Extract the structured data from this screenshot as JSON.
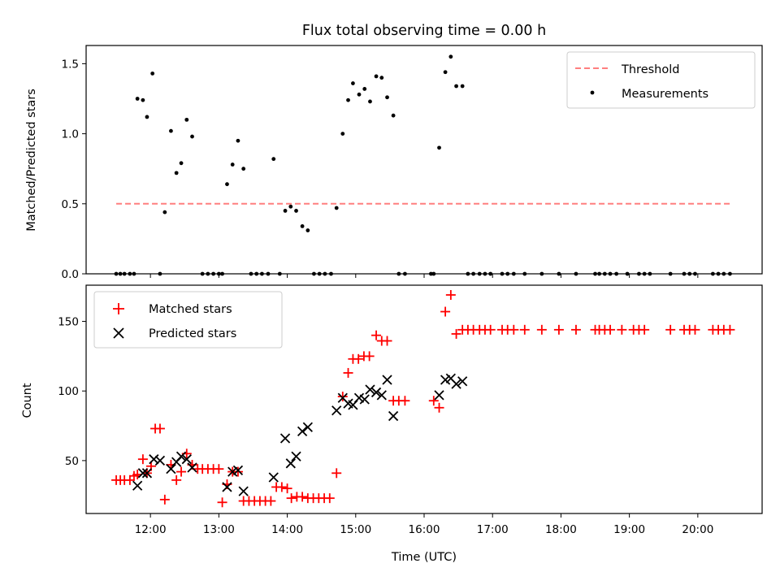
{
  "chart_data": [
    {
      "type": "scatter",
      "title": "Flux total observing time = 0.00 h",
      "xlabel": "",
      "ylabel": "Matched/Predicted stars",
      "ylim": [
        0,
        1.63
      ],
      "xlim": [
        11.06,
        20.94
      ],
      "yticks": [
        0.0,
        0.5,
        1.0,
        1.5
      ],
      "ytick_labels": [
        "0.0",
        "0.5",
        "1.0",
        "1.5"
      ],
      "legend_position": "top-right",
      "legend": [
        "Threshold",
        "Measurements"
      ],
      "threshold": {
        "name": "Threshold",
        "y": 0.5,
        "x_range": [
          11.5,
          20.5
        ],
        "color": "#ff7f7f"
      },
      "series": [
        {
          "name": "Measurements",
          "color": "#000000",
          "points": [
            [
              11.81,
              1.25
            ],
            [
              11.89,
              1.24
            ],
            [
              11.95,
              1.12
            ],
            [
              12.03,
              1.43
            ],
            [
              12.3,
              1.02
            ],
            [
              12.38,
              0.72
            ],
            [
              12.45,
              0.79
            ],
            [
              12.53,
              1.1
            ],
            [
              12.61,
              0.98
            ],
            [
              12.21,
              0.44
            ],
            [
              13.12,
              0.64
            ],
            [
              13.2,
              0.78
            ],
            [
              13.28,
              0.95
            ],
            [
              13.36,
              0.75
            ],
            [
              13.8,
              0.82
            ],
            [
              13.97,
              0.45
            ],
            [
              14.05,
              0.48
            ],
            [
              14.13,
              0.45
            ],
            [
              14.22,
              0.34
            ],
            [
              14.3,
              0.31
            ],
            [
              14.72,
              0.47
            ],
            [
              14.81,
              1.0
            ],
            [
              14.89,
              1.24
            ],
            [
              14.96,
              1.36
            ],
            [
              15.05,
              1.28
            ],
            [
              15.13,
              1.32
            ],
            [
              15.21,
              1.23
            ],
            [
              15.3,
              1.41
            ],
            [
              15.38,
              1.4
            ],
            [
              15.46,
              1.26
            ],
            [
              15.55,
              1.13
            ],
            [
              16.22,
              0.9
            ],
            [
              16.31,
              1.44
            ],
            [
              16.39,
              1.55
            ],
            [
              16.47,
              1.34
            ],
            [
              16.56,
              1.34
            ],
            [
              11.5,
              0
            ],
            [
              11.56,
              0
            ],
            [
              11.62,
              0
            ],
            [
              11.7,
              0
            ],
            [
              11.76,
              0
            ],
            [
              12.14,
              0
            ],
            [
              12.76,
              0
            ],
            [
              12.84,
              0
            ],
            [
              12.92,
              0
            ],
            [
              13.0,
              0
            ],
            [
              13.05,
              0
            ],
            [
              13.47,
              0
            ],
            [
              13.55,
              0
            ],
            [
              13.63,
              0
            ],
            [
              13.72,
              0
            ],
            [
              13.89,
              0
            ],
            [
              14.39,
              0
            ],
            [
              14.47,
              0
            ],
            [
              14.55,
              0
            ],
            [
              14.64,
              0
            ],
            [
              15.63,
              0
            ],
            [
              15.72,
              0
            ],
            [
              16.1,
              0
            ],
            [
              16.14,
              0
            ],
            [
              16.64,
              0
            ],
            [
              16.72,
              0
            ],
            [
              16.81,
              0
            ],
            [
              16.89,
              0
            ],
            [
              16.97,
              0
            ],
            [
              17.14,
              0
            ],
            [
              17.22,
              0
            ],
            [
              17.31,
              0
            ],
            [
              17.47,
              0
            ],
            [
              17.72,
              0
            ],
            [
              17.97,
              0
            ],
            [
              18.22,
              0
            ],
            [
              18.5,
              0
            ],
            [
              18.56,
              0
            ],
            [
              18.64,
              0
            ],
            [
              18.72,
              0
            ],
            [
              18.81,
              0
            ],
            [
              18.97,
              0
            ],
            [
              19.14,
              0
            ],
            [
              19.22,
              0
            ],
            [
              19.3,
              0
            ],
            [
              19.6,
              0
            ],
            [
              19.8,
              0
            ],
            [
              19.88,
              0
            ],
            [
              19.96,
              0
            ],
            [
              20.22,
              0
            ],
            [
              20.3,
              0
            ],
            [
              20.38,
              0
            ],
            [
              20.47,
              0
            ]
          ]
        }
      ]
    },
    {
      "type": "scatter",
      "title": "",
      "xlabel": "Time (UTC)",
      "ylabel": "Count",
      "ylim": [
        12,
        176
      ],
      "xlim": [
        11.06,
        20.94
      ],
      "yticks": [
        50,
        100,
        150
      ],
      "ytick_labels": [
        "50",
        "100",
        "150"
      ],
      "xticks": [
        12,
        13,
        14,
        15,
        16,
        17,
        18,
        19,
        20
      ],
      "xtick_labels": [
        "12:00",
        "13:00",
        "14:00",
        "15:00",
        "16:00",
        "17:00",
        "18:00",
        "19:00",
        "20:00"
      ],
      "legend_position": "top-left",
      "legend": [
        "Matched stars",
        "Predicted stars"
      ],
      "series": [
        {
          "name": "Matched stars",
          "color": "#ff0000",
          "marker": "plus",
          "points": [
            [
              11.5,
              36
            ],
            [
              11.56,
              36
            ],
            [
              11.62,
              36
            ],
            [
              11.7,
              36
            ],
            [
              11.76,
              39
            ],
            [
              11.81,
              40
            ],
            [
              11.89,
              51
            ],
            [
              11.95,
              41
            ],
            [
              12.01,
              46
            ],
            [
              12.07,
              73
            ],
            [
              12.14,
              73
            ],
            [
              12.21,
              22
            ],
            [
              12.3,
              47
            ],
            [
              12.38,
              36
            ],
            [
              12.45,
              42
            ],
            [
              12.53,
              55
            ],
            [
              12.61,
              47
            ],
            [
              12.69,
              44
            ],
            [
              12.76,
              44
            ],
            [
              12.84,
              44
            ],
            [
              12.92,
              44
            ],
            [
              13.0,
              44
            ],
            [
              13.05,
              20
            ],
            [
              13.12,
              33
            ],
            [
              13.2,
              42
            ],
            [
              13.28,
              42
            ],
            [
              13.36,
              21
            ],
            [
              13.44,
              21
            ],
            [
              13.52,
              21
            ],
            [
              13.6,
              21
            ],
            [
              13.68,
              21
            ],
            [
              13.76,
              21
            ],
            [
              13.84,
              31
            ],
            [
              13.92,
              31
            ],
            [
              14.0,
              30
            ],
            [
              14.06,
              23
            ],
            [
              14.14,
              24
            ],
            [
              14.22,
              24
            ],
            [
              14.3,
              23
            ],
            [
              14.38,
              23
            ],
            [
              14.46,
              23
            ],
            [
              14.54,
              23
            ],
            [
              14.62,
              23
            ],
            [
              14.72,
              41
            ],
            [
              14.81,
              96
            ],
            [
              14.89,
              113
            ],
            [
              14.96,
              123
            ],
            [
              15.04,
              123
            ],
            [
              15.12,
              125
            ],
            [
              15.2,
              125
            ],
            [
              15.3,
              140
            ],
            [
              15.38,
              136
            ],
            [
              15.46,
              136
            ],
            [
              15.55,
              93
            ],
            [
              15.63,
              93
            ],
            [
              15.72,
              93
            ],
            [
              16.14,
              93
            ],
            [
              16.22,
              88
            ],
            [
              16.31,
              157
            ],
            [
              16.39,
              169
            ],
            [
              16.47,
              141
            ],
            [
              16.56,
              144
            ],
            [
              16.64,
              144
            ],
            [
              16.72,
              144
            ],
            [
              16.81,
              144
            ],
            [
              16.89,
              144
            ],
            [
              16.97,
              144
            ],
            [
              17.14,
              144
            ],
            [
              17.22,
              144
            ],
            [
              17.31,
              144
            ],
            [
              17.47,
              144
            ],
            [
              17.72,
              144
            ],
            [
              17.97,
              144
            ],
            [
              18.22,
              144
            ],
            [
              18.5,
              144
            ],
            [
              18.56,
              144
            ],
            [
              18.64,
              144
            ],
            [
              18.72,
              144
            ],
            [
              18.89,
              144
            ],
            [
              19.06,
              144
            ],
            [
              19.14,
              144
            ],
            [
              19.22,
              144
            ],
            [
              19.6,
              144
            ],
            [
              19.8,
              144
            ],
            [
              19.88,
              144
            ],
            [
              19.96,
              144
            ],
            [
              20.22,
              144
            ],
            [
              20.3,
              144
            ],
            [
              20.38,
              144
            ],
            [
              20.47,
              144
            ]
          ]
        },
        {
          "name": "Predicted stars",
          "color": "#000000",
          "marker": "x",
          "points": [
            [
              11.81,
              32
            ],
            [
              11.89,
              41
            ],
            [
              11.95,
              41
            ],
            [
              12.05,
              51
            ],
            [
              12.14,
              50
            ],
            [
              12.3,
              44
            ],
            [
              12.38,
              49
            ],
            [
              12.45,
              53
            ],
            [
              12.53,
              51
            ],
            [
              12.61,
              45
            ],
            [
              13.12,
              31
            ],
            [
              13.2,
              42
            ],
            [
              13.28,
              43
            ],
            [
              13.36,
              28
            ],
            [
              13.8,
              38
            ],
            [
              13.97,
              66
            ],
            [
              14.05,
              48
            ],
            [
              14.13,
              53
            ],
            [
              14.22,
              71
            ],
            [
              14.3,
              74
            ],
            [
              14.72,
              86
            ],
            [
              14.81,
              95
            ],
            [
              14.89,
              91
            ],
            [
              14.96,
              90
            ],
            [
              15.05,
              95
            ],
            [
              15.13,
              94
            ],
            [
              15.21,
              101
            ],
            [
              15.3,
              99
            ],
            [
              15.38,
              97
            ],
            [
              15.46,
              108
            ],
            [
              15.55,
              82
            ],
            [
              16.22,
              97
            ],
            [
              16.31,
              108
            ],
            [
              16.39,
              109
            ],
            [
              16.47,
              105
            ],
            [
              16.56,
              107
            ]
          ]
        }
      ]
    }
  ]
}
